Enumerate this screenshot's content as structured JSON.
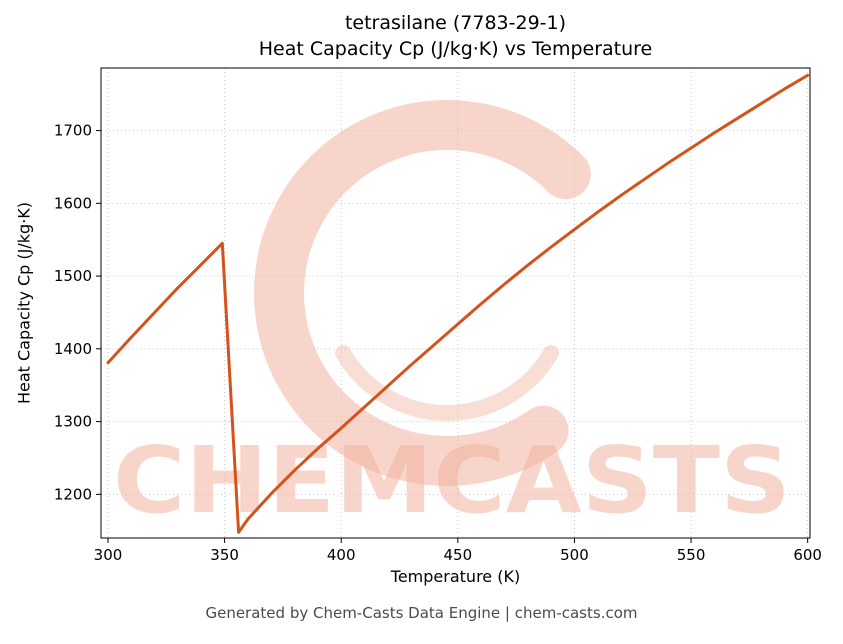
{
  "title_line1": "tetrasilane (7783-29-1)",
  "title_line2": "Heat Capacity Cp (J/kg·K) vs Temperature",
  "footer_text": "Generated by Chem-Casts Data Engine | chem-casts.com",
  "watermark": {
    "text": "CHEMCASTS",
    "icon": "brush-c-logo",
    "color": "#f2b3a0",
    "opacity": 0.55
  },
  "colors": {
    "line": "#d4531d",
    "grid": "#c9c9c9",
    "spine": "#000000",
    "tick_label": "#000000",
    "footer": "#4a4a4a"
  },
  "chart_data": {
    "type": "line",
    "title": "tetrasilane (7783-29-1) Heat Capacity Cp (J/kg·K) vs Temperature",
    "xlabel": "Temperature (K)",
    "ylabel": "Heat Capacity Cp (J/kg·K)",
    "xlim": [
      297,
      601
    ],
    "ylim": [
      1140,
      1786
    ],
    "x_ticks": [
      300,
      350,
      400,
      450,
      500,
      550,
      600
    ],
    "y_ticks": [
      1200,
      1300,
      1400,
      1500,
      1600,
      1700
    ],
    "grid": true,
    "legend": "none",
    "series": [
      {
        "name": "Heat Capacity Cp",
        "points": [
          [
            300,
            1381
          ],
          [
            310,
            1416
          ],
          [
            320,
            1450
          ],
          [
            330,
            1484
          ],
          [
            340,
            1516
          ],
          [
            349,
            1545
          ],
          [
            356,
            1148
          ],
          [
            360,
            1166
          ],
          [
            370,
            1201
          ],
          [
            380,
            1233
          ],
          [
            390,
            1263
          ],
          [
            400,
            1291
          ],
          [
            410,
            1320
          ],
          [
            420,
            1349
          ],
          [
            430,
            1378
          ],
          [
            440,
            1406
          ],
          [
            450,
            1434
          ],
          [
            460,
            1462
          ],
          [
            470,
            1489
          ],
          [
            480,
            1515
          ],
          [
            490,
            1540
          ],
          [
            500,
            1564
          ],
          [
            510,
            1588
          ],
          [
            520,
            1611
          ],
          [
            530,
            1633
          ],
          [
            540,
            1655
          ],
          [
            550,
            1676
          ],
          [
            560,
            1697
          ],
          [
            570,
            1717
          ],
          [
            580,
            1737
          ],
          [
            590,
            1757
          ],
          [
            600,
            1776
          ]
        ]
      }
    ]
  }
}
